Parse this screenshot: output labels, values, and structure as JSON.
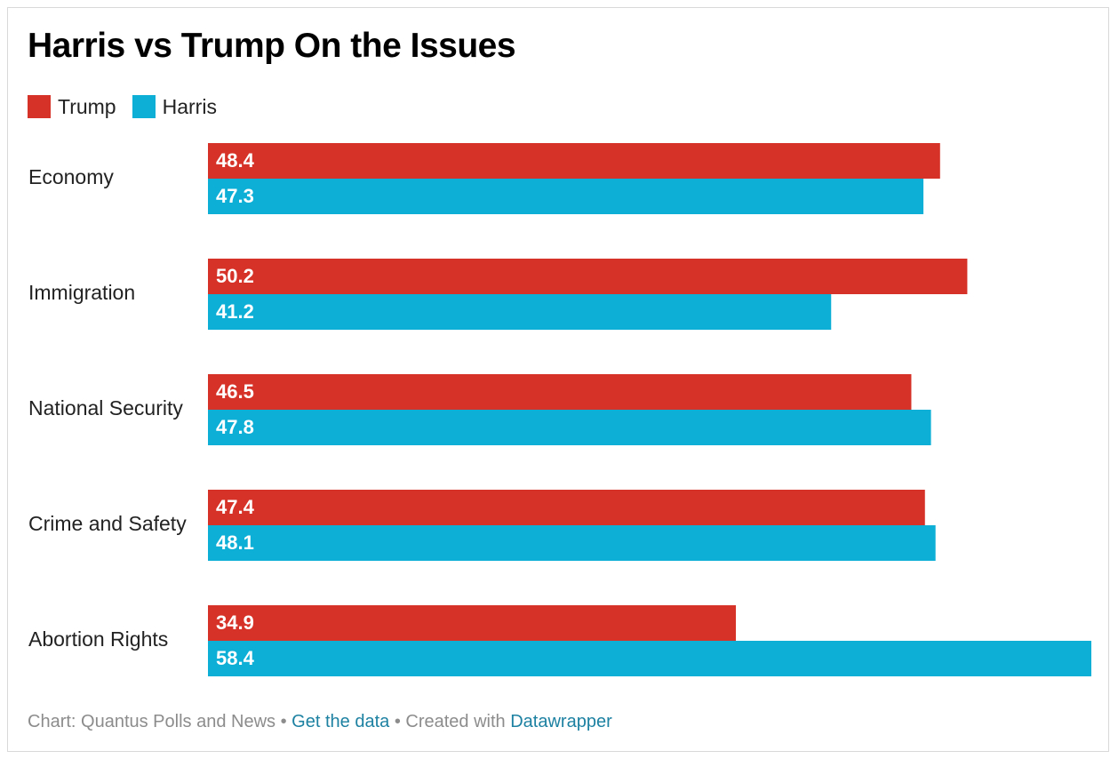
{
  "chart_data": {
    "type": "bar",
    "orientation": "horizontal",
    "title": "Harris vs Trump On the Issues",
    "categories": [
      "Economy",
      "Immigration",
      "National Security",
      "Crime and Safety",
      "Abortion Rights"
    ],
    "series": [
      {
        "name": "Trump",
        "color": "#d63227",
        "values": [
          48.4,
          50.2,
          46.5,
          47.4,
          34.9
        ]
      },
      {
        "name": "Harris",
        "color": "#0eafd6",
        "values": [
          47.3,
          41.2,
          47.8,
          48.1,
          58.4
        ]
      }
    ],
    "xlim": [
      0,
      58.4
    ],
    "grid": false,
    "legend_position": "top-left",
    "data_labels": "inside-start"
  },
  "footer": {
    "source": "Chart: Quantus Polls and News",
    "separator": "•",
    "get_data": "Get the data",
    "created_with": "Created with",
    "tool": "Datawrapper"
  }
}
